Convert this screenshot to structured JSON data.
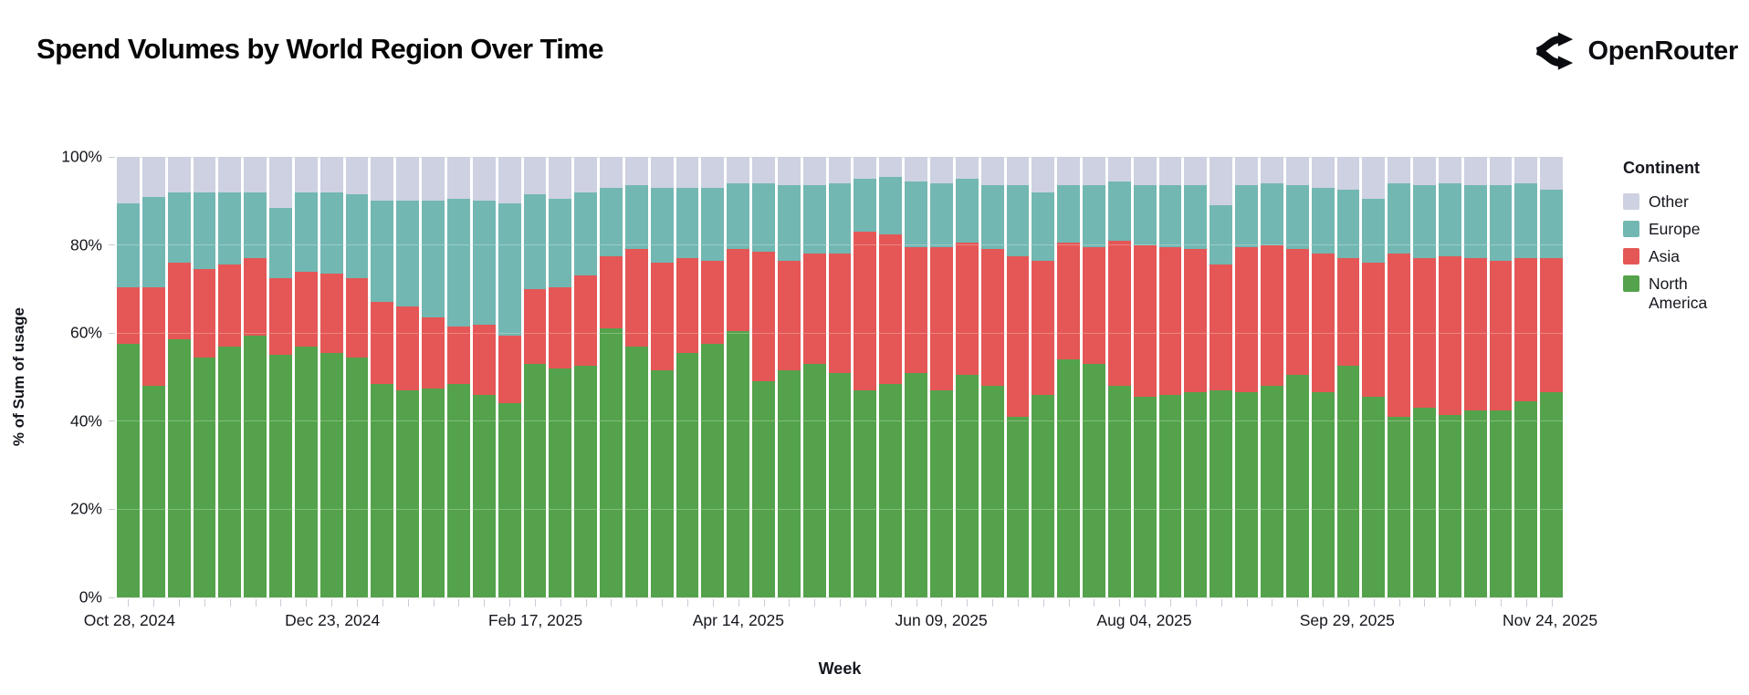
{
  "header": {
    "title": "Spend Volumes by World Region Over Time",
    "brand": "OpenRouter"
  },
  "legend": {
    "title": "Continent",
    "items": [
      {
        "label": "Other",
        "color": "#cdd1e1"
      },
      {
        "label": "Europe",
        "color": "#72b7b2"
      },
      {
        "label": "Asia",
        "color": "#e45756"
      },
      {
        "label": "North America",
        "color": "#54a24b"
      }
    ]
  },
  "chart_data": {
    "type": "bar",
    "stacked": true,
    "title": "Spend Volumes by World Region Over Time",
    "xlabel": "Week",
    "ylabel": "% of Sum of usage",
    "ylim": [
      0,
      100
    ],
    "grid": true,
    "legend_position": "right",
    "y_tick_values": [
      0,
      20,
      40,
      60,
      80,
      100
    ],
    "y_tick_labels": [
      "0%",
      "20%",
      "40%",
      "60%",
      "80%",
      "100%"
    ],
    "x_tick_indices": [
      0,
      8,
      16,
      24,
      32,
      40,
      48,
      56
    ],
    "x_tick_labels": [
      "Oct 28, 2024",
      "Dec 23, 2024",
      "Feb 17, 2025",
      "Apr 14, 2025",
      "Jun 09, 2025",
      "Aug 04, 2025",
      "Sep 29, 2025",
      "Nov 24, 2025"
    ],
    "categories": [
      "Oct 28, 2024",
      "Nov 04, 2024",
      "Nov 11, 2024",
      "Nov 18, 2024",
      "Nov 25, 2024",
      "Dec 02, 2024",
      "Dec 09, 2024",
      "Dec 16, 2024",
      "Dec 23, 2024",
      "Dec 30, 2024",
      "Jan 06, 2025",
      "Jan 13, 2025",
      "Jan 20, 2025",
      "Jan 27, 2025",
      "Feb 03, 2025",
      "Feb 10, 2025",
      "Feb 17, 2025",
      "Feb 24, 2025",
      "Mar 03, 2025",
      "Mar 10, 2025",
      "Mar 17, 2025",
      "Mar 24, 2025",
      "Mar 31, 2025",
      "Apr 07, 2025",
      "Apr 14, 2025",
      "Apr 21, 2025",
      "Apr 28, 2025",
      "May 05, 2025",
      "May 12, 2025",
      "May 19, 2025",
      "May 26, 2025",
      "Jun 02, 2025",
      "Jun 09, 2025",
      "Jun 16, 2025",
      "Jun 23, 2025",
      "Jun 30, 2025",
      "Jul 07, 2025",
      "Jul 14, 2025",
      "Jul 21, 2025",
      "Jul 28, 2025",
      "Aug 04, 2025",
      "Aug 11, 2025",
      "Aug 18, 2025",
      "Aug 25, 2025",
      "Sep 01, 2025",
      "Sep 08, 2025",
      "Sep 15, 2025",
      "Sep 22, 2025",
      "Sep 29, 2025",
      "Oct 06, 2025",
      "Oct 13, 2025",
      "Oct 20, 2025",
      "Oct 27, 2025",
      "Nov 03, 2025",
      "Nov 10, 2025",
      "Nov 17, 2025",
      "Nov 24, 2025"
    ],
    "series": [
      {
        "name": "North America",
        "color": "#54a24b",
        "values": [
          57.5,
          48,
          58.5,
          54.5,
          57,
          59.5,
          55,
          57,
          55.5,
          54.5,
          48.5,
          47,
          47.5,
          48.5,
          46,
          44,
          53,
          52,
          52.5,
          61,
          57,
          51.5,
          55.5,
          57.5,
          60.5,
          49,
          51.5,
          53,
          51,
          47,
          48.5,
          51,
          47,
          50.5,
          48,
          41,
          46,
          54,
          53,
          48,
          45.5,
          46,
          46.5,
          47,
          46.5,
          48,
          50.5,
          46.5,
          52.5,
          45.5,
          41,
          43,
          41.5,
          42.5,
          42.5,
          44.5,
          46.5
        ]
      },
      {
        "name": "Asia",
        "color": "#e45756",
        "values": [
          13,
          22.5,
          17.5,
          20,
          18.5,
          17.5,
          17.5,
          17,
          18,
          18,
          18.5,
          19,
          16,
          13,
          16,
          15.5,
          17,
          18.5,
          20.5,
          16.5,
          22,
          24.5,
          21.5,
          19,
          18.5,
          29.5,
          25,
          25,
          27,
          36,
          34,
          28.5,
          32.5,
          30,
          31,
          36.5,
          30.5,
          26.5,
          26.5,
          33,
          34.5,
          33.5,
          32.5,
          28.5,
          33,
          32,
          28.5,
          31.5,
          24.5,
          30.5,
          37,
          34,
          36,
          34.5,
          34,
          32.5,
          30.5
        ]
      },
      {
        "name": "Europe",
        "color": "#72b7b2",
        "values": [
          19,
          20.5,
          16,
          17.5,
          16.5,
          15,
          16,
          18,
          18.5,
          19,
          23,
          24,
          26.5,
          29,
          28,
          30,
          21.5,
          20,
          19,
          15.5,
          14.5,
          17,
          16,
          16.5,
          15,
          15.5,
          17,
          15.5,
          16,
          12,
          13,
          15,
          14.5,
          14.5,
          14.5,
          16,
          15.5,
          13,
          14,
          13.5,
          13.5,
          14,
          14.5,
          13.5,
          14,
          14,
          14.5,
          15,
          15.5,
          14.5,
          16,
          16.5,
          16.5,
          16.5,
          17,
          17,
          15.5
        ]
      },
      {
        "name": "Other",
        "color": "#cdd1e1",
        "values": [
          10.5,
          9,
          8,
          8,
          8,
          8,
          11.5,
          8,
          8,
          8.5,
          10,
          10,
          10,
          9.5,
          10,
          10.5,
          8.5,
          9.5,
          8,
          7,
          6.5,
          7,
          7,
          7,
          6,
          6,
          6.5,
          6.5,
          6,
          5,
          4.5,
          5.5,
          6,
          5,
          6.5,
          6.5,
          8,
          6.5,
          6.5,
          5.5,
          6.5,
          6.5,
          6.5,
          11,
          6.5,
          6,
          6.5,
          7,
          7.5,
          9.5,
          6,
          6.5,
          6,
          6.5,
          6.5,
          6,
          7.5
        ]
      }
    ]
  }
}
